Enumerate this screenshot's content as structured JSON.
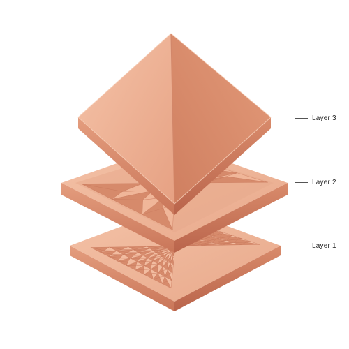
{
  "labels": {
    "layer3": "Layer 3",
    "layer2": "Layer 2",
    "layer1": "Layer 1"
  },
  "colors": {
    "copper_light": "#f1b79d",
    "copper_mid": "#e59a7b",
    "copper_dark": "#c8735a",
    "copper_deep": "#b05f48",
    "background": "#ffffff"
  },
  "layer1_grid_count": 9,
  "layer2_grid_count": 3
}
